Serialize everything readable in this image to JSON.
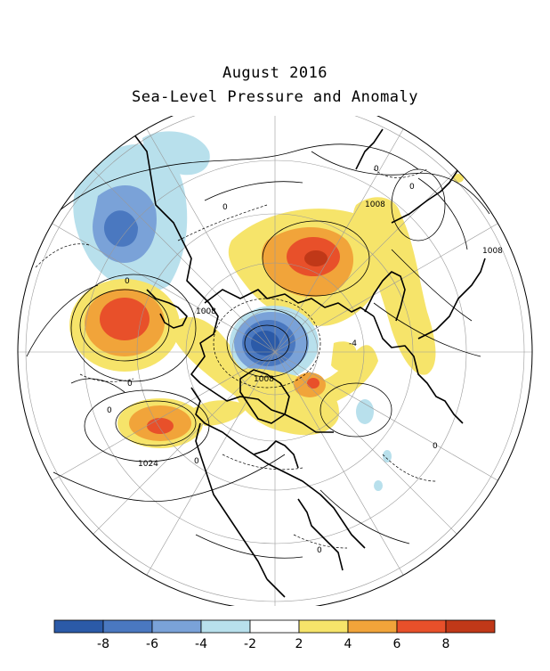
{
  "title": {
    "line1": "August 2016",
    "line2": "Sea-Level Pressure and Anomaly"
  },
  "map": {
    "projection": "north polar stereographic",
    "contour_labels": [
      {
        "text": "1008",
        "id": "c1008-pacific"
      },
      {
        "text": "1008",
        "id": "c1008-east"
      },
      {
        "text": "1008",
        "id": "c1008-center"
      },
      {
        "text": "1008",
        "id": "c1008-canada"
      },
      {
        "text": "1024",
        "id": "c1024-atlantic"
      },
      {
        "text": "0",
        "id": "z1"
      },
      {
        "text": "0",
        "id": "z2"
      },
      {
        "text": "0",
        "id": "z3"
      },
      {
        "text": "0",
        "id": "z4"
      },
      {
        "text": "0",
        "id": "z5"
      },
      {
        "text": "0",
        "id": "z6"
      },
      {
        "text": "0",
        "id": "z7"
      },
      {
        "text": "0",
        "id": "z8"
      },
      {
        "text": "0",
        "id": "z9"
      },
      {
        "text": "-4",
        "id": "z10"
      }
    ]
  },
  "colorbar": {
    "ticks": [
      "-8",
      "-6",
      "-4",
      "-2",
      "2",
      "4",
      "6",
      "8"
    ],
    "colors": [
      "#2b5aa8",
      "#4a78c0",
      "#7aa2d8",
      "#b8e0ec",
      "#ffffff",
      "#f6e46a",
      "#f1a43a",
      "#e8502a",
      "#c03818"
    ]
  }
}
